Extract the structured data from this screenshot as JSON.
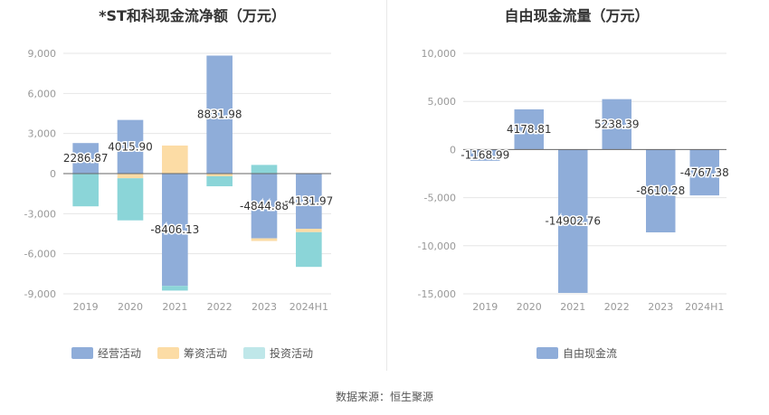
{
  "source_text": "数据来源：恒生聚源",
  "chart_data": [
    {
      "type": "bar",
      "stacked": true,
      "title": "*ST和科现金流净额（万元）",
      "categories": [
        "2019",
        "2020",
        "2021",
        "2022",
        "2023",
        "2024H1"
      ],
      "ylim": [
        -9000,
        9000
      ],
      "yticks": [
        9000,
        6000,
        3000,
        0,
        -3000,
        -6000,
        -9000
      ],
      "ytick_labels": [
        "9,000",
        "6,000",
        "3,000",
        "0",
        "-3,000",
        "-6,000",
        "-9,000"
      ],
      "grid": true,
      "legend_position": "bottom",
      "series": [
        {
          "name": "经营活动",
          "color": "#8fadd9",
          "values": [
            2286.87,
            4015.9,
            -8406.13,
            8831.98,
            -4844.88,
            -4131.97
          ],
          "data_labels": [
            "2286.87",
            "4015.90",
            "-8406.13",
            "8831.98",
            "-4844.88",
            "-4131.97"
          ]
        },
        {
          "name": "筹资活动",
          "color": "#fcdca5",
          "values": [
            0,
            -350,
            2100,
            -200,
            -200,
            -250
          ]
        },
        {
          "name": "投资活动",
          "color": "#8bd5d8",
          "values": [
            -2450,
            -3150,
            -350,
            -750,
            650,
            -2600
          ]
        }
      ]
    },
    {
      "type": "bar",
      "title": "自由现金流量（万元）",
      "categories": [
        "2019",
        "2020",
        "2021",
        "2022",
        "2023",
        "2024H1"
      ],
      "ylim": [
        -15000,
        10000
      ],
      "yticks": [
        10000,
        5000,
        0,
        -5000,
        -10000,
        -15000
      ],
      "ytick_labels": [
        "10,000",
        "5,000",
        "0",
        "-5,000",
        "-10,000",
        "-15,000"
      ],
      "grid": true,
      "legend_position": "bottom",
      "series": [
        {
          "name": "自由现金流",
          "color": "#8fadd9",
          "values": [
            -1168.99,
            4178.81,
            -14902.76,
            5238.39,
            -8610.28,
            -4767.38
          ],
          "data_labels": [
            "-1168.99",
            "4178.81",
            "-14902.76",
            "5238.39",
            "-8610.28",
            "-4767.38"
          ]
        }
      ]
    }
  ]
}
